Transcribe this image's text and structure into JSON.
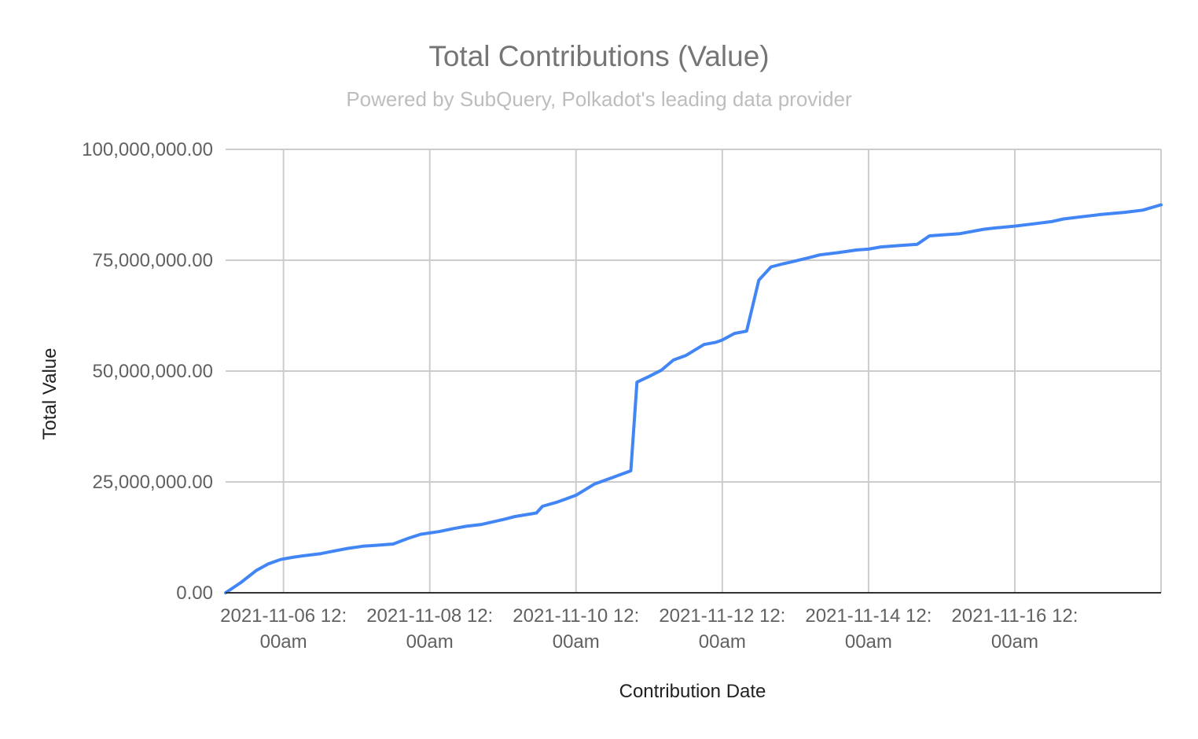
{
  "chart_data": {
    "type": "line",
    "title": "Total Contributions (Value)",
    "subtitle": "Powered by SubQuery, Polkadot's leading data provider",
    "xlabel": "Contribution Date",
    "ylabel": "Total Value",
    "ylim": [
      0,
      100000000
    ],
    "yticks": [
      0,
      25000000,
      50000000,
      75000000,
      100000000
    ],
    "ytick_labels": [
      "0.00",
      "25,000,000.00",
      "50,000,000.00",
      "75,000,000.00",
      "100,000,000.00"
    ],
    "xlim": [
      "2021-11-05 17:00",
      "2021-11-18 12:00"
    ],
    "xticks": [
      "2021-11-06 12:00",
      "2021-11-08 12:00",
      "2021-11-10 12:00",
      "2021-11-12 12:00",
      "2021-11-14 12:00",
      "2021-11-16 12:00",
      "2021-11-18 12:00"
    ],
    "xtick_labels": [
      [
        "2021-11-06 12:",
        "00am"
      ],
      [
        "2021-11-08 12:",
        "00am"
      ],
      [
        "2021-11-10 12:",
        "00am"
      ],
      [
        "2021-11-12 12:",
        "00am"
      ],
      [
        "2021-11-14 12:",
        "00am"
      ],
      [
        "2021-11-16 12:",
        "00am"
      ],
      [
        "",
        ""
      ]
    ],
    "grid": true,
    "legend": "none",
    "series": [
      {
        "color": "#4285f4",
        "x": [
          "2021-11-05 17:00",
          "2021-11-05 22:00",
          "2021-11-06 03:00",
          "2021-11-06 07:00",
          "2021-11-06 11:00",
          "2021-11-06 15:00",
          "2021-11-06 18:00",
          "2021-11-07 00:00",
          "2021-11-07 03:00",
          "2021-11-07 09:00",
          "2021-11-07 14:00",
          "2021-11-07 18:00",
          "2021-11-08 00:00",
          "2021-11-08 05:00",
          "2021-11-08 09:00",
          "2021-11-08 15:00",
          "2021-11-08 20:00",
          "2021-11-09 00:00",
          "2021-11-09 05:00",
          "2021-11-09 12:00",
          "2021-11-09 16:00",
          "2021-11-09 23:00",
          "2021-11-10 01:00",
          "2021-11-10 06:00",
          "2021-11-10 08:00",
          "2021-11-10 12:00",
          "2021-11-10 18:00",
          "2021-11-11 00:00",
          "2021-11-11 02:00",
          "2021-11-11 06:00",
          "2021-11-11 08:00",
          "2021-11-11 12:00",
          "2021-11-11 14:00",
          "2021-11-11 16:00",
          "2021-11-11 20:00",
          "2021-11-12 00:00",
          "2021-11-12 06:00",
          "2021-11-12 10:00",
          "2021-11-12 12:00",
          "2021-11-12 16:00",
          "2021-11-12 20:00",
          "2021-11-13 00:00",
          "2021-11-13 04:00",
          "2021-11-13 08:00",
          "2021-11-13 10:00",
          "2021-11-13 16:00",
          "2021-11-13 20:00",
          "2021-11-14 02:00",
          "2021-11-14 08:00",
          "2021-11-14 12:00",
          "2021-11-14 16:00",
          "2021-11-14 22:00",
          "2021-11-15 04:00",
          "2021-11-15 08:00",
          "2021-11-15 12:00",
          "2021-11-15 18:00",
          "2021-11-16 02:00",
          "2021-11-16 06:00",
          "2021-11-16 12:00",
          "2021-11-16 18:00",
          "2021-11-17 00:00",
          "2021-11-17 04:00",
          "2021-11-17 10:00",
          "2021-11-17 16:00",
          "2021-11-18 00:00",
          "2021-11-18 06:00",
          "2021-11-18 12:00"
        ],
        "y": [
          0,
          2300000,
          5000000,
          6500000,
          7500000,
          8000000,
          8300000,
          8800000,
          9200000,
          10000000,
          10500000,
          10700000,
          11000000,
          12300000,
          13200000,
          13800000,
          14500000,
          15000000,
          15400000,
          16500000,
          17200000,
          18000000,
          19500000,
          20500000,
          21000000,
          22000000,
          24500000,
          26000000,
          26500000,
          27500000,
          47500000,
          48800000,
          49500000,
          50200000,
          52500000,
          53500000,
          56000000,
          56500000,
          57000000,
          58500000,
          59000000,
          70500000,
          73500000,
          74200000,
          74500000,
          75500000,
          76200000,
          76700000,
          77300000,
          77500000,
          78000000,
          78300000,
          78600000,
          80500000,
          80700000,
          81000000,
          82000000,
          82300000,
          82700000,
          83200000,
          83700000,
          84300000,
          84800000,
          85300000,
          85800000,
          86300000,
          87500000
        ]
      }
    ]
  }
}
